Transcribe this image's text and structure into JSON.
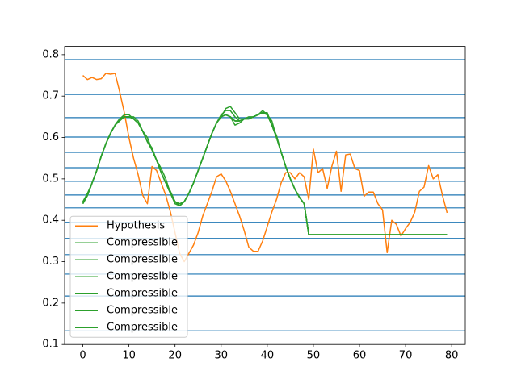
{
  "chart_data": {
    "type": "line",
    "x": [
      0,
      1,
      2,
      3,
      4,
      5,
      6,
      7,
      8,
      9,
      10,
      11,
      12,
      13,
      14,
      15,
      16,
      17,
      18,
      19,
      20,
      21,
      22,
      23,
      24,
      25,
      26,
      27,
      28,
      29,
      30,
      31,
      32,
      33,
      34,
      35,
      36,
      37,
      38,
      39,
      40,
      41,
      42,
      43,
      44,
      45,
      46,
      47,
      48,
      49,
      50,
      51,
      52,
      53,
      54,
      55,
      56,
      57,
      58,
      59,
      60,
      61,
      62,
      63,
      64,
      65,
      66,
      67,
      68,
      69,
      70,
      71,
      72,
      73,
      74,
      75,
      76,
      77,
      78,
      79
    ],
    "hlines": [
      0.788,
      0.704,
      0.648,
      0.601,
      0.564,
      0.527,
      0.494,
      0.461,
      0.43,
      0.395,
      0.356,
      0.317,
      0.27,
      0.217,
      0.133
    ],
    "hline_color": "#1f77b4",
    "series": [
      {
        "name": "Hypothesis",
        "color": "#ff7f0e",
        "values": [
          0.75,
          0.74,
          0.745,
          0.74,
          0.742,
          0.755,
          0.753,
          0.755,
          0.71,
          0.66,
          0.6,
          0.55,
          0.51,
          0.46,
          0.44,
          0.53,
          0.52,
          0.49,
          0.46,
          0.42,
          0.37,
          0.32,
          0.3,
          0.32,
          0.34,
          0.37,
          0.41,
          0.44,
          0.47,
          0.505,
          0.512,
          0.495,
          0.47,
          0.44,
          0.41,
          0.375,
          0.335,
          0.325,
          0.325,
          0.35,
          0.385,
          0.42,
          0.45,
          0.49,
          0.515,
          0.515,
          0.5,
          0.515,
          0.505,
          0.45,
          0.572,
          0.515,
          0.525,
          0.477,
          0.53,
          0.567,
          0.47,
          0.558,
          0.56,
          0.525,
          0.52,
          0.458,
          0.468,
          0.468,
          0.44,
          0.425,
          0.322,
          0.4,
          0.39,
          0.362,
          0.38,
          0.395,
          0.42,
          0.47,
          0.48,
          0.532,
          0.5,
          0.51,
          0.46,
          0.418
        ]
      },
      {
        "name": "Compressible",
        "color": "#2ca02c",
        "values": [
          0.44,
          0.46,
          0.49,
          0.52,
          0.555,
          0.585,
          0.61,
          0.63,
          0.645,
          0.65,
          0.65,
          0.645,
          0.635,
          0.615,
          0.59,
          0.57,
          0.545,
          0.515,
          0.49,
          0.465,
          0.445,
          0.435,
          0.445,
          0.465,
          0.49,
          0.52,
          0.55,
          0.58,
          0.61,
          0.635,
          0.65,
          0.655,
          0.65,
          0.64,
          0.64,
          0.645,
          0.645,
          0.65,
          0.655,
          0.66,
          0.655,
          0.63,
          0.6,
          0.565,
          0.53,
          0.5,
          0.475,
          0.455,
          0.44,
          0.365,
          0.365,
          0.365,
          0.365,
          0.365,
          0.365,
          0.365,
          0.365,
          0.365,
          0.365,
          0.365,
          0.365,
          0.365,
          0.365,
          0.365,
          0.365,
          0.365,
          0.365,
          0.365,
          0.365,
          0.365,
          0.365,
          0.365,
          0.365,
          0.365,
          0.365,
          0.365,
          0.365,
          0.365,
          0.365,
          0.365
        ]
      },
      {
        "name": "Compressible",
        "color": "#2ca02c",
        "values": [
          0.44,
          0.46,
          0.49,
          0.52,
          0.555,
          0.585,
          0.61,
          0.63,
          0.645,
          0.655,
          0.655,
          0.645,
          0.635,
          0.615,
          0.59,
          0.57,
          0.545,
          0.525,
          0.5,
          0.465,
          0.445,
          0.435,
          0.445,
          0.465,
          0.49,
          0.52,
          0.55,
          0.58,
          0.61,
          0.635,
          0.65,
          0.67,
          0.675,
          0.66,
          0.645,
          0.645,
          0.645,
          0.65,
          0.655,
          0.66,
          0.655,
          0.63,
          0.6,
          0.565,
          0.53,
          0.5,
          0.475,
          0.455,
          0.44,
          0.365,
          0.365,
          0.365,
          0.365,
          0.365,
          0.365,
          0.365,
          0.365,
          0.365,
          0.365,
          0.365,
          0.365,
          0.365,
          0.365,
          0.365,
          0.365,
          0.365,
          0.365,
          0.365,
          0.365,
          0.365,
          0.365,
          0.365,
          0.365,
          0.365,
          0.365,
          0.365,
          0.365,
          0.365,
          0.365,
          0.365
        ]
      },
      {
        "name": "Compressible",
        "color": "#2ca02c",
        "values": [
          0.44,
          0.46,
          0.49,
          0.52,
          0.555,
          0.585,
          0.61,
          0.63,
          0.645,
          0.65,
          0.65,
          0.65,
          0.64,
          0.615,
          0.59,
          0.57,
          0.545,
          0.515,
          0.49,
          0.465,
          0.445,
          0.435,
          0.445,
          0.465,
          0.49,
          0.52,
          0.55,
          0.58,
          0.61,
          0.635,
          0.655,
          0.665,
          0.665,
          0.65,
          0.64,
          0.645,
          0.645,
          0.65,
          0.655,
          0.66,
          0.655,
          0.64,
          0.6,
          0.565,
          0.53,
          0.5,
          0.475,
          0.455,
          0.44,
          0.365,
          0.365,
          0.365,
          0.365,
          0.365,
          0.365,
          0.365,
          0.365,
          0.365,
          0.365,
          0.365,
          0.365,
          0.365,
          0.365,
          0.365,
          0.365,
          0.365,
          0.365,
          0.365,
          0.365,
          0.365,
          0.365,
          0.365,
          0.365,
          0.365,
          0.365,
          0.365,
          0.365,
          0.365,
          0.365,
          0.365
        ]
      },
      {
        "name": "Compressible",
        "color": "#2ca02c",
        "values": [
          0.44,
          0.46,
          0.49,
          0.52,
          0.555,
          0.585,
          0.61,
          0.63,
          0.645,
          0.65,
          0.65,
          0.645,
          0.635,
          0.615,
          0.6,
          0.57,
          0.545,
          0.515,
          0.49,
          0.465,
          0.445,
          0.44,
          0.445,
          0.465,
          0.49,
          0.52,
          0.55,
          0.58,
          0.61,
          0.635,
          0.65,
          0.655,
          0.65,
          0.63,
          0.635,
          0.645,
          0.645,
          0.65,
          0.655,
          0.665,
          0.655,
          0.63,
          0.6,
          0.565,
          0.53,
          0.5,
          0.475,
          0.455,
          0.44,
          0.365,
          0.365,
          0.365,
          0.365,
          0.365,
          0.365,
          0.365,
          0.365,
          0.365,
          0.365,
          0.365,
          0.365,
          0.365,
          0.365,
          0.365,
          0.365,
          0.365,
          0.365,
          0.365,
          0.365,
          0.365,
          0.365,
          0.365,
          0.365,
          0.365,
          0.365,
          0.365,
          0.365,
          0.365,
          0.365,
          0.365
        ]
      },
      {
        "name": "Compressible",
        "color": "#2ca02c",
        "values": [
          0.445,
          0.465,
          0.49,
          0.52,
          0.555,
          0.585,
          0.61,
          0.63,
          0.645,
          0.65,
          0.65,
          0.645,
          0.635,
          0.615,
          0.59,
          0.57,
          0.545,
          0.515,
          0.49,
          0.47,
          0.445,
          0.435,
          0.445,
          0.465,
          0.49,
          0.52,
          0.55,
          0.58,
          0.61,
          0.635,
          0.65,
          0.655,
          0.65,
          0.64,
          0.64,
          0.645,
          0.65,
          0.65,
          0.655,
          0.66,
          0.66,
          0.63,
          0.6,
          0.565,
          0.53,
          0.5,
          0.475,
          0.455,
          0.44,
          0.365,
          0.365,
          0.365,
          0.365,
          0.365,
          0.365,
          0.365,
          0.365,
          0.365,
          0.365,
          0.365,
          0.365,
          0.365,
          0.365,
          0.365,
          0.365,
          0.365,
          0.365,
          0.365,
          0.365,
          0.365,
          0.365,
          0.365,
          0.365,
          0.365,
          0.365,
          0.365,
          0.365,
          0.365,
          0.365,
          0.365
        ]
      },
      {
        "name": "Compressible",
        "color": "#2ca02c",
        "values": [
          0.44,
          0.46,
          0.49,
          0.52,
          0.555,
          0.585,
          0.61,
          0.63,
          0.64,
          0.65,
          0.65,
          0.645,
          0.635,
          0.615,
          0.59,
          0.575,
          0.545,
          0.515,
          0.49,
          0.465,
          0.44,
          0.435,
          0.445,
          0.465,
          0.49,
          0.52,
          0.55,
          0.58,
          0.61,
          0.635,
          0.65,
          0.655,
          0.65,
          0.64,
          0.64,
          0.645,
          0.645,
          0.65,
          0.655,
          0.66,
          0.655,
          0.63,
          0.605,
          0.565,
          0.53,
          0.5,
          0.475,
          0.455,
          0.44,
          0.365,
          0.365,
          0.365,
          0.365,
          0.365,
          0.365,
          0.365,
          0.365,
          0.365,
          0.365,
          0.365,
          0.365,
          0.365,
          0.365,
          0.365,
          0.365,
          0.365,
          0.365,
          0.365,
          0.365,
          0.365,
          0.365,
          0.365,
          0.365,
          0.365,
          0.365,
          0.365,
          0.365,
          0.365,
          0.365,
          0.365
        ]
      }
    ],
    "xlim": [
      -3.95,
      82.95
    ],
    "ylim": [
      0.1,
      0.82
    ],
    "xticks": [
      0,
      10,
      20,
      30,
      40,
      50,
      60,
      70,
      80
    ],
    "yticks": [
      0.1,
      0.2,
      0.3,
      0.4,
      0.5,
      0.6,
      0.7,
      0.8
    ],
    "legend": "lower left"
  }
}
